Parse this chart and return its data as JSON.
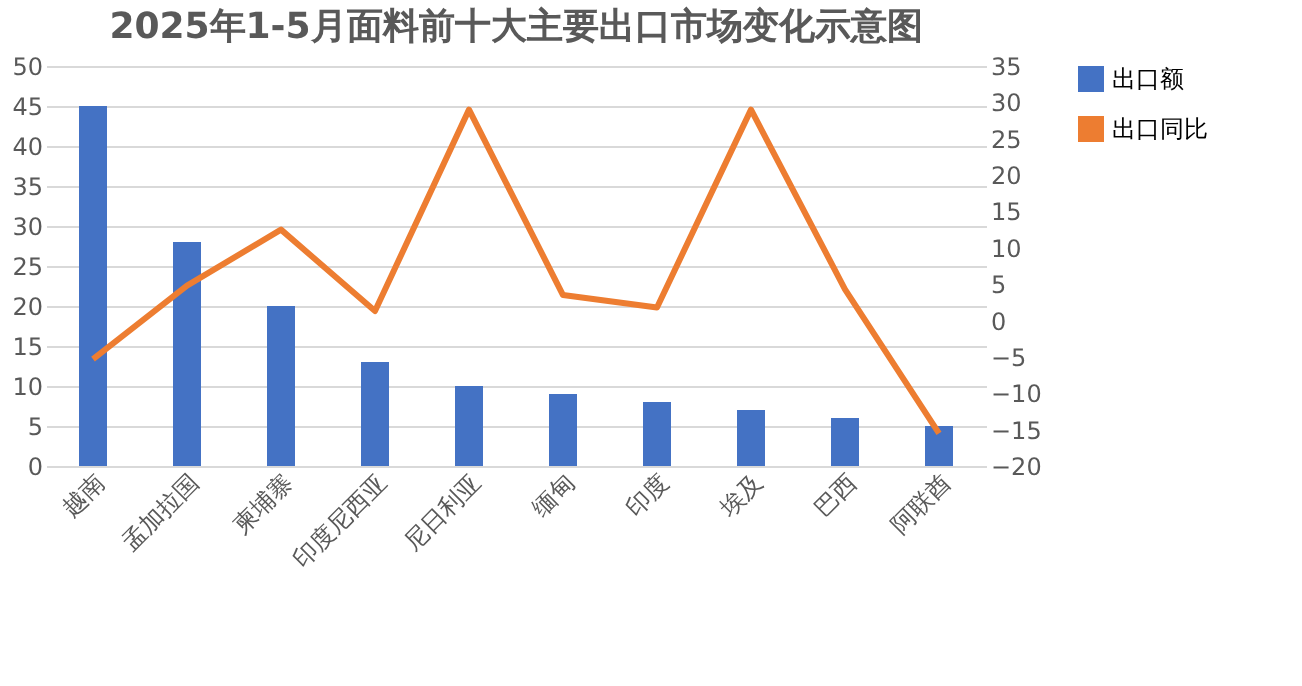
{
  "chart_data": {
    "type": "bar",
    "title": "2025年1-5月面料前十大主要出口市场变化示意图",
    "categories": [
      "越南",
      "孟加拉国",
      "柬埔寨",
      "印度尼西亚",
      "尼日利亚",
      "缅甸",
      "印度",
      "埃及",
      "巴西",
      "阿联酋"
    ],
    "series": [
      {
        "name": "出口额",
        "color": "#4472c4",
        "values": [
          45,
          28,
          20,
          13,
          10,
          9,
          8,
          7,
          6,
          5
        ]
      },
      {
        "name": "出口同比",
        "type": "line",
        "axis": "y2",
        "color": "#ed7d31",
        "values": [
          -5.3,
          4.8,
          12.5,
          1.3,
          29,
          3.5,
          1.8,
          29,
          4.3,
          -15.5
        ]
      }
    ],
    "ylim": [
      0,
      50
    ],
    "yticks": [
      0,
      5,
      10,
      15,
      20,
      25,
      30,
      35,
      40,
      45,
      50
    ],
    "y2lim": [
      -20,
      35
    ],
    "y2ticks": [
      -20,
      -15,
      -10,
      -5,
      0,
      5,
      10,
      15,
      20,
      25,
      30,
      35
    ],
    "grid": "y",
    "legend": "right"
  }
}
